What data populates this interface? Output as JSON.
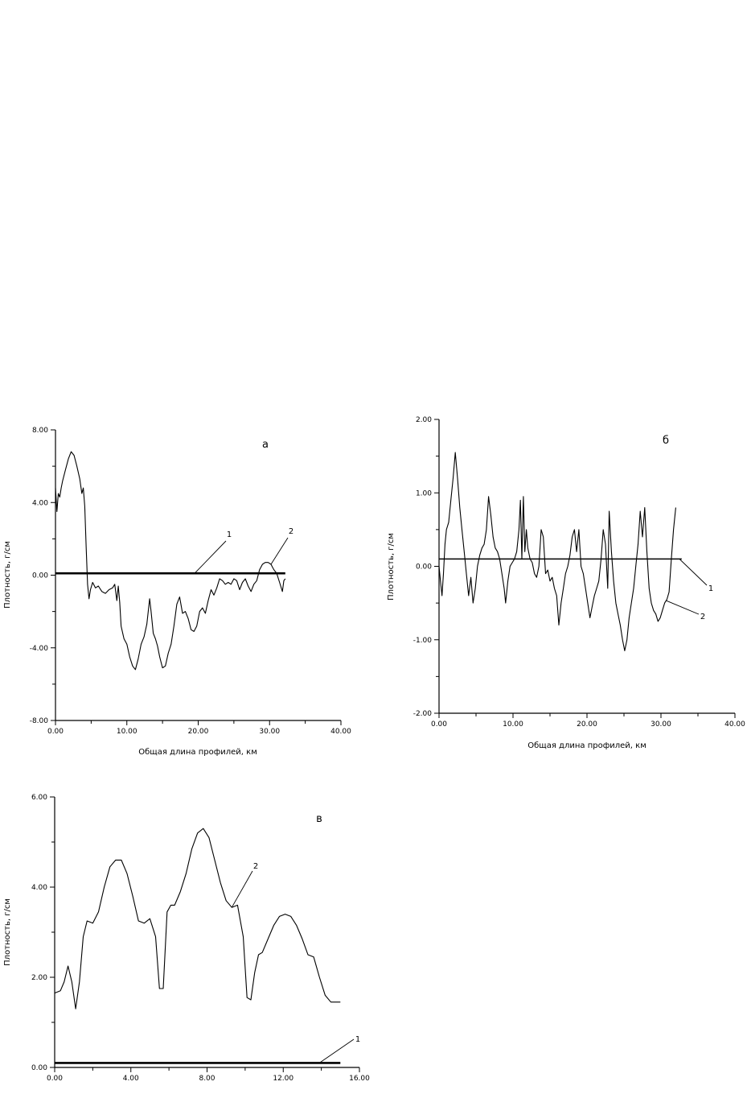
{
  "chart_data": [
    {
      "type": "line",
      "panel_label": "а",
      "xlabel": "Общая длина профилей, км",
      "ylabel": "Плотность, г/см",
      "xlim": [
        0,
        40
      ],
      "ylim": [
        -8,
        8
      ],
      "x_ticks": [
        0,
        10,
        20,
        30,
        40
      ],
      "x_tick_labels": [
        "0.00",
        "10.00",
        "20.00",
        "30.00",
        "40.00"
      ],
      "y_ticks": [
        -8,
        -4,
        0,
        4,
        8
      ],
      "y_tick_labels": [
        "-8.00",
        "-4.00",
        "0.00",
        "4.00",
        "8.00"
      ],
      "grid": false,
      "callouts": [
        "1",
        "2"
      ],
      "series": [
        {
          "id": "1",
          "x": [
            0,
            32.2
          ],
          "y": [
            0.1,
            0.1
          ]
        },
        {
          "id": "2",
          "x": [
            0,
            0.2,
            0.4,
            0.6,
            0.8,
            1.0,
            1.4,
            1.8,
            2.2,
            2.6,
            3.0,
            3.4,
            3.7,
            3.9,
            4.1,
            4.3,
            4.5,
            4.7,
            4.9,
            5.2,
            5.6,
            6.0,
            6.5,
            7.0,
            7.5,
            8.0,
            8.3,
            8.6,
            8.8,
            9.0,
            9.2,
            9.6,
            10.0,
            10.4,
            10.8,
            11.2,
            11.6,
            12.0,
            12.4,
            12.8,
            13.2,
            13.4,
            13.7,
            14.0,
            14.3,
            14.6,
            15.0,
            15.4,
            15.8,
            16.2,
            16.6,
            17.0,
            17.4,
            17.8,
            18.2,
            18.6,
            19.0,
            19.4,
            19.8,
            20.2,
            20.6,
            21.0,
            21.4,
            21.8,
            22.2,
            22.6,
            23.0,
            23.4,
            23.8,
            24.2,
            24.6,
            25.0,
            25.4,
            25.8,
            26.2,
            26.6,
            27.0,
            27.4,
            27.8,
            28.2,
            28.6,
            29.0,
            29.4,
            29.8,
            30.2,
            30.6,
            31.0,
            31.4,
            31.8,
            32.0,
            32.2
          ],
          "y": [
            4.8,
            3.5,
            4.5,
            4.3,
            4.8,
            5.2,
            5.8,
            6.4,
            6.8,
            6.6,
            6.0,
            5.3,
            4.5,
            4.8,
            3.8,
            1.5,
            -0.5,
            -1.3,
            -0.8,
            -0.4,
            -0.7,
            -0.6,
            -0.9,
            -1.0,
            -0.8,
            -0.7,
            -0.5,
            -1.4,
            -0.6,
            -1.5,
            -2.8,
            -3.5,
            -3.8,
            -4.5,
            -5.0,
            -5.2,
            -4.6,
            -3.8,
            -3.4,
            -2.7,
            -1.3,
            -2.0,
            -3.2,
            -3.5,
            -3.9,
            -4.5,
            -5.1,
            -5.0,
            -4.3,
            -3.8,
            -2.8,
            -1.6,
            -1.2,
            -2.1,
            -2.0,
            -2.4,
            -3.0,
            -3.1,
            -2.8,
            -2.0,
            -1.8,
            -2.1,
            -1.4,
            -0.8,
            -1.1,
            -0.7,
            -0.2,
            -0.3,
            -0.5,
            -0.4,
            -0.5,
            -0.2,
            -0.3,
            -0.8,
            -0.4,
            -0.2,
            -0.6,
            -0.9,
            -0.5,
            -0.3,
            0.3,
            0.6,
            0.7,
            0.7,
            0.6,
            0.3,
            0.1,
            -0.4,
            -0.9,
            -0.3,
            -0.2
          ]
        }
      ]
    },
    {
      "type": "line",
      "panel_label": "б",
      "xlabel": "Общая длина профилей, км",
      "ylabel": "Плотность, г/см",
      "xlim": [
        0,
        40
      ],
      "ylim": [
        -2,
        2
      ],
      "x_ticks": [
        0,
        10,
        20,
        30,
        40
      ],
      "x_tick_labels": [
        "0.00",
        "10.00",
        "20.00",
        "30.00",
        "40.00"
      ],
      "y_ticks": [
        -2,
        -1,
        0,
        1,
        2
      ],
      "y_tick_labels": [
        "-2.00",
        "-1.00",
        "0.00",
        "1.00",
        "2.00"
      ],
      "grid": false,
      "callouts": [
        "1",
        "2"
      ],
      "series": [
        {
          "id": "1",
          "x": [
            0,
            32.8
          ],
          "y": [
            0.1,
            0.1
          ]
        },
        {
          "id": "2",
          "x": [
            0,
            0.2,
            0.4,
            0.6,
            0.8,
            1.0,
            1.3,
            1.6,
            1.9,
            2.2,
            2.5,
            2.8,
            3.1,
            3.4,
            3.7,
            4.0,
            4.3,
            4.6,
            4.9,
            5.2,
            5.5,
            5.8,
            6.1,
            6.4,
            6.7,
            7.0,
            7.3,
            7.6,
            7.9,
            8.2,
            8.5,
            8.8,
            9.0,
            9.3,
            9.6,
            9.9,
            10.2,
            10.5,
            10.8,
            11.0,
            11.2,
            11.4,
            11.6,
            11.8,
            12.0,
            12.3,
            12.6,
            12.9,
            13.2,
            13.5,
            13.8,
            14.1,
            14.4,
            14.7,
            15.0,
            15.3,
            15.6,
            15.9,
            16.2,
            16.5,
            16.8,
            17.1,
            17.4,
            17.7,
            18.0,
            18.3,
            18.6,
            18.9,
            19.2,
            19.5,
            19.8,
            20.1,
            20.4,
            20.7,
            21.0,
            21.3,
            21.6,
            21.9,
            22.2,
            22.5,
            22.8,
            23.0,
            23.3,
            23.6,
            23.9,
            24.2,
            24.5,
            24.8,
            25.1,
            25.4,
            25.7,
            26.0,
            26.3,
            26.6,
            26.9,
            27.2,
            27.5,
            27.8,
            28.1,
            28.4,
            28.7,
            29.0,
            29.3,
            29.6,
            29.9,
            30.2,
            30.5,
            30.8,
            31.1,
            31.4,
            31.7,
            32.0
          ],
          "y": [
            0.0,
            -0.2,
            -0.4,
            -0.1,
            0.3,
            0.5,
            0.6,
            0.9,
            1.2,
            1.55,
            1.2,
            0.8,
            0.5,
            0.2,
            -0.1,
            -0.4,
            -0.15,
            -0.5,
            -0.3,
            0.0,
            0.15,
            0.25,
            0.3,
            0.5,
            0.95,
            0.7,
            0.4,
            0.25,
            0.2,
            0.1,
            -0.1,
            -0.3,
            -0.5,
            -0.2,
            0.0,
            0.05,
            0.1,
            0.2,
            0.5,
            0.9,
            0.1,
            0.95,
            0.2,
            0.5,
            0.25,
            0.1,
            0.05,
            -0.1,
            -0.15,
            0.0,
            0.5,
            0.4,
            -0.1,
            -0.05,
            -0.2,
            -0.15,
            -0.3,
            -0.4,
            -0.8,
            -0.5,
            -0.3,
            -0.1,
            0.0,
            0.15,
            0.4,
            0.5,
            0.2,
            0.5,
            0.0,
            -0.1,
            -0.3,
            -0.5,
            -0.7,
            -0.55,
            -0.4,
            -0.3,
            -0.2,
            0.1,
            0.5,
            0.3,
            -0.3,
            0.75,
            0.2,
            -0.2,
            -0.5,
            -0.65,
            -0.8,
            -1.0,
            -1.15,
            -1.0,
            -0.7,
            -0.5,
            -0.3,
            0.0,
            0.3,
            0.75,
            0.4,
            0.8,
            0.2,
            -0.3,
            -0.5,
            -0.6,
            -0.65,
            -0.75,
            -0.7,
            -0.6,
            -0.5,
            -0.45,
            -0.35,
            0.1,
            0.5,
            0.8
          ]
        }
      ]
    },
    {
      "type": "line",
      "panel_label": "в",
      "xlabel": "",
      "ylabel": "Плотность, г/см",
      "xlim": [
        0,
        16
      ],
      "ylim": [
        0,
        6
      ],
      "x_ticks": [
        0,
        4,
        8,
        12,
        16
      ],
      "x_tick_labels": [
        "0.00",
        "4.00",
        "8.00",
        "12.00",
        "16.00"
      ],
      "y_ticks": [
        0,
        2,
        4,
        6
      ],
      "y_tick_labels": [
        "0.00",
        "2.00",
        "4.00",
        "6.00"
      ],
      "grid": false,
      "callouts": [
        "1",
        "2"
      ],
      "series": [
        {
          "id": "1",
          "x": [
            0,
            15
          ],
          "y": [
            0.1,
            0.1
          ]
        },
        {
          "id": "2",
          "x": [
            0,
            0.3,
            0.5,
            0.7,
            0.9,
            1.1,
            1.3,
            1.5,
            1.7,
            2.0,
            2.3,
            2.6,
            2.9,
            3.2,
            3.5,
            3.8,
            4.1,
            4.4,
            4.7,
            5.0,
            5.3,
            5.5,
            5.7,
            5.9,
            6.1,
            6.3,
            6.6,
            6.9,
            7.2,
            7.5,
            7.8,
            8.1,
            8.4,
            8.7,
            9.0,
            9.3,
            9.6,
            9.9,
            10.1,
            10.3,
            10.5,
            10.7,
            10.9,
            11.2,
            11.5,
            11.8,
            12.1,
            12.4,
            12.7,
            13.0,
            13.3,
            13.6,
            13.9,
            14.2,
            14.5,
            14.8,
            15.0
          ],
          "y": [
            1.65,
            1.7,
            1.9,
            2.25,
            1.9,
            1.3,
            1.9,
            2.9,
            3.25,
            3.2,
            3.45,
            4.0,
            4.45,
            4.6,
            4.6,
            4.3,
            3.8,
            3.25,
            3.2,
            3.3,
            2.9,
            1.75,
            1.75,
            3.45,
            3.6,
            3.6,
            3.9,
            4.3,
            4.85,
            5.2,
            5.3,
            5.1,
            4.6,
            4.1,
            3.7,
            3.55,
            3.6,
            2.9,
            1.55,
            1.5,
            2.1,
            2.5,
            2.55,
            2.85,
            3.15,
            3.35,
            3.4,
            3.35,
            3.15,
            2.85,
            2.5,
            2.45,
            2.0,
            1.6,
            1.45,
            1.45,
            1.45
          ]
        }
      ]
    }
  ]
}
